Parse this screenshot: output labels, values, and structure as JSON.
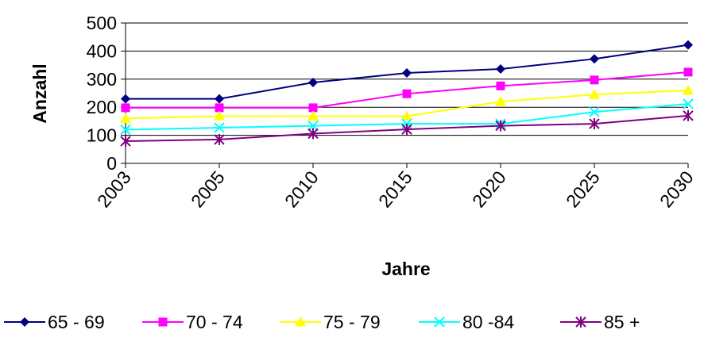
{
  "chart_data": {
    "type": "line",
    "title": "",
    "xlabel": "Jahre",
    "ylabel": "Anzahl",
    "categories": [
      "2003",
      "2005",
      "2010",
      "2015",
      "2020",
      "2025",
      "2030"
    ],
    "ylim": [
      0,
      500
    ],
    "yticks": [
      0,
      100,
      200,
      300,
      400,
      500
    ],
    "grid": "horizontal",
    "legend_position": "bottom",
    "series": [
      {
        "name": "65 - 69",
        "color": "#000080",
        "marker": "diamond",
        "values": [
          230,
          230,
          288,
          322,
          336,
          372,
          422
        ]
      },
      {
        "name": "70 - 74",
        "color": "#FF00FF",
        "marker": "square",
        "values": [
          198,
          198,
          198,
          248,
          276,
          297,
          325
        ]
      },
      {
        "name": "75 - 79",
        "color": "#FFFF00",
        "marker": "triangle",
        "values": [
          160,
          168,
          168,
          168,
          220,
          245,
          260
        ]
      },
      {
        "name": "80 -84",
        "color": "#00FFFF",
        "marker": "x",
        "values": [
          120,
          127,
          134,
          141,
          141,
          183,
          212
        ]
      },
      {
        "name": "85 +",
        "color": "#800080",
        "marker": "star",
        "values": [
          79,
          85,
          106,
          121,
          134,
          141,
          170
        ]
      }
    ]
  }
}
